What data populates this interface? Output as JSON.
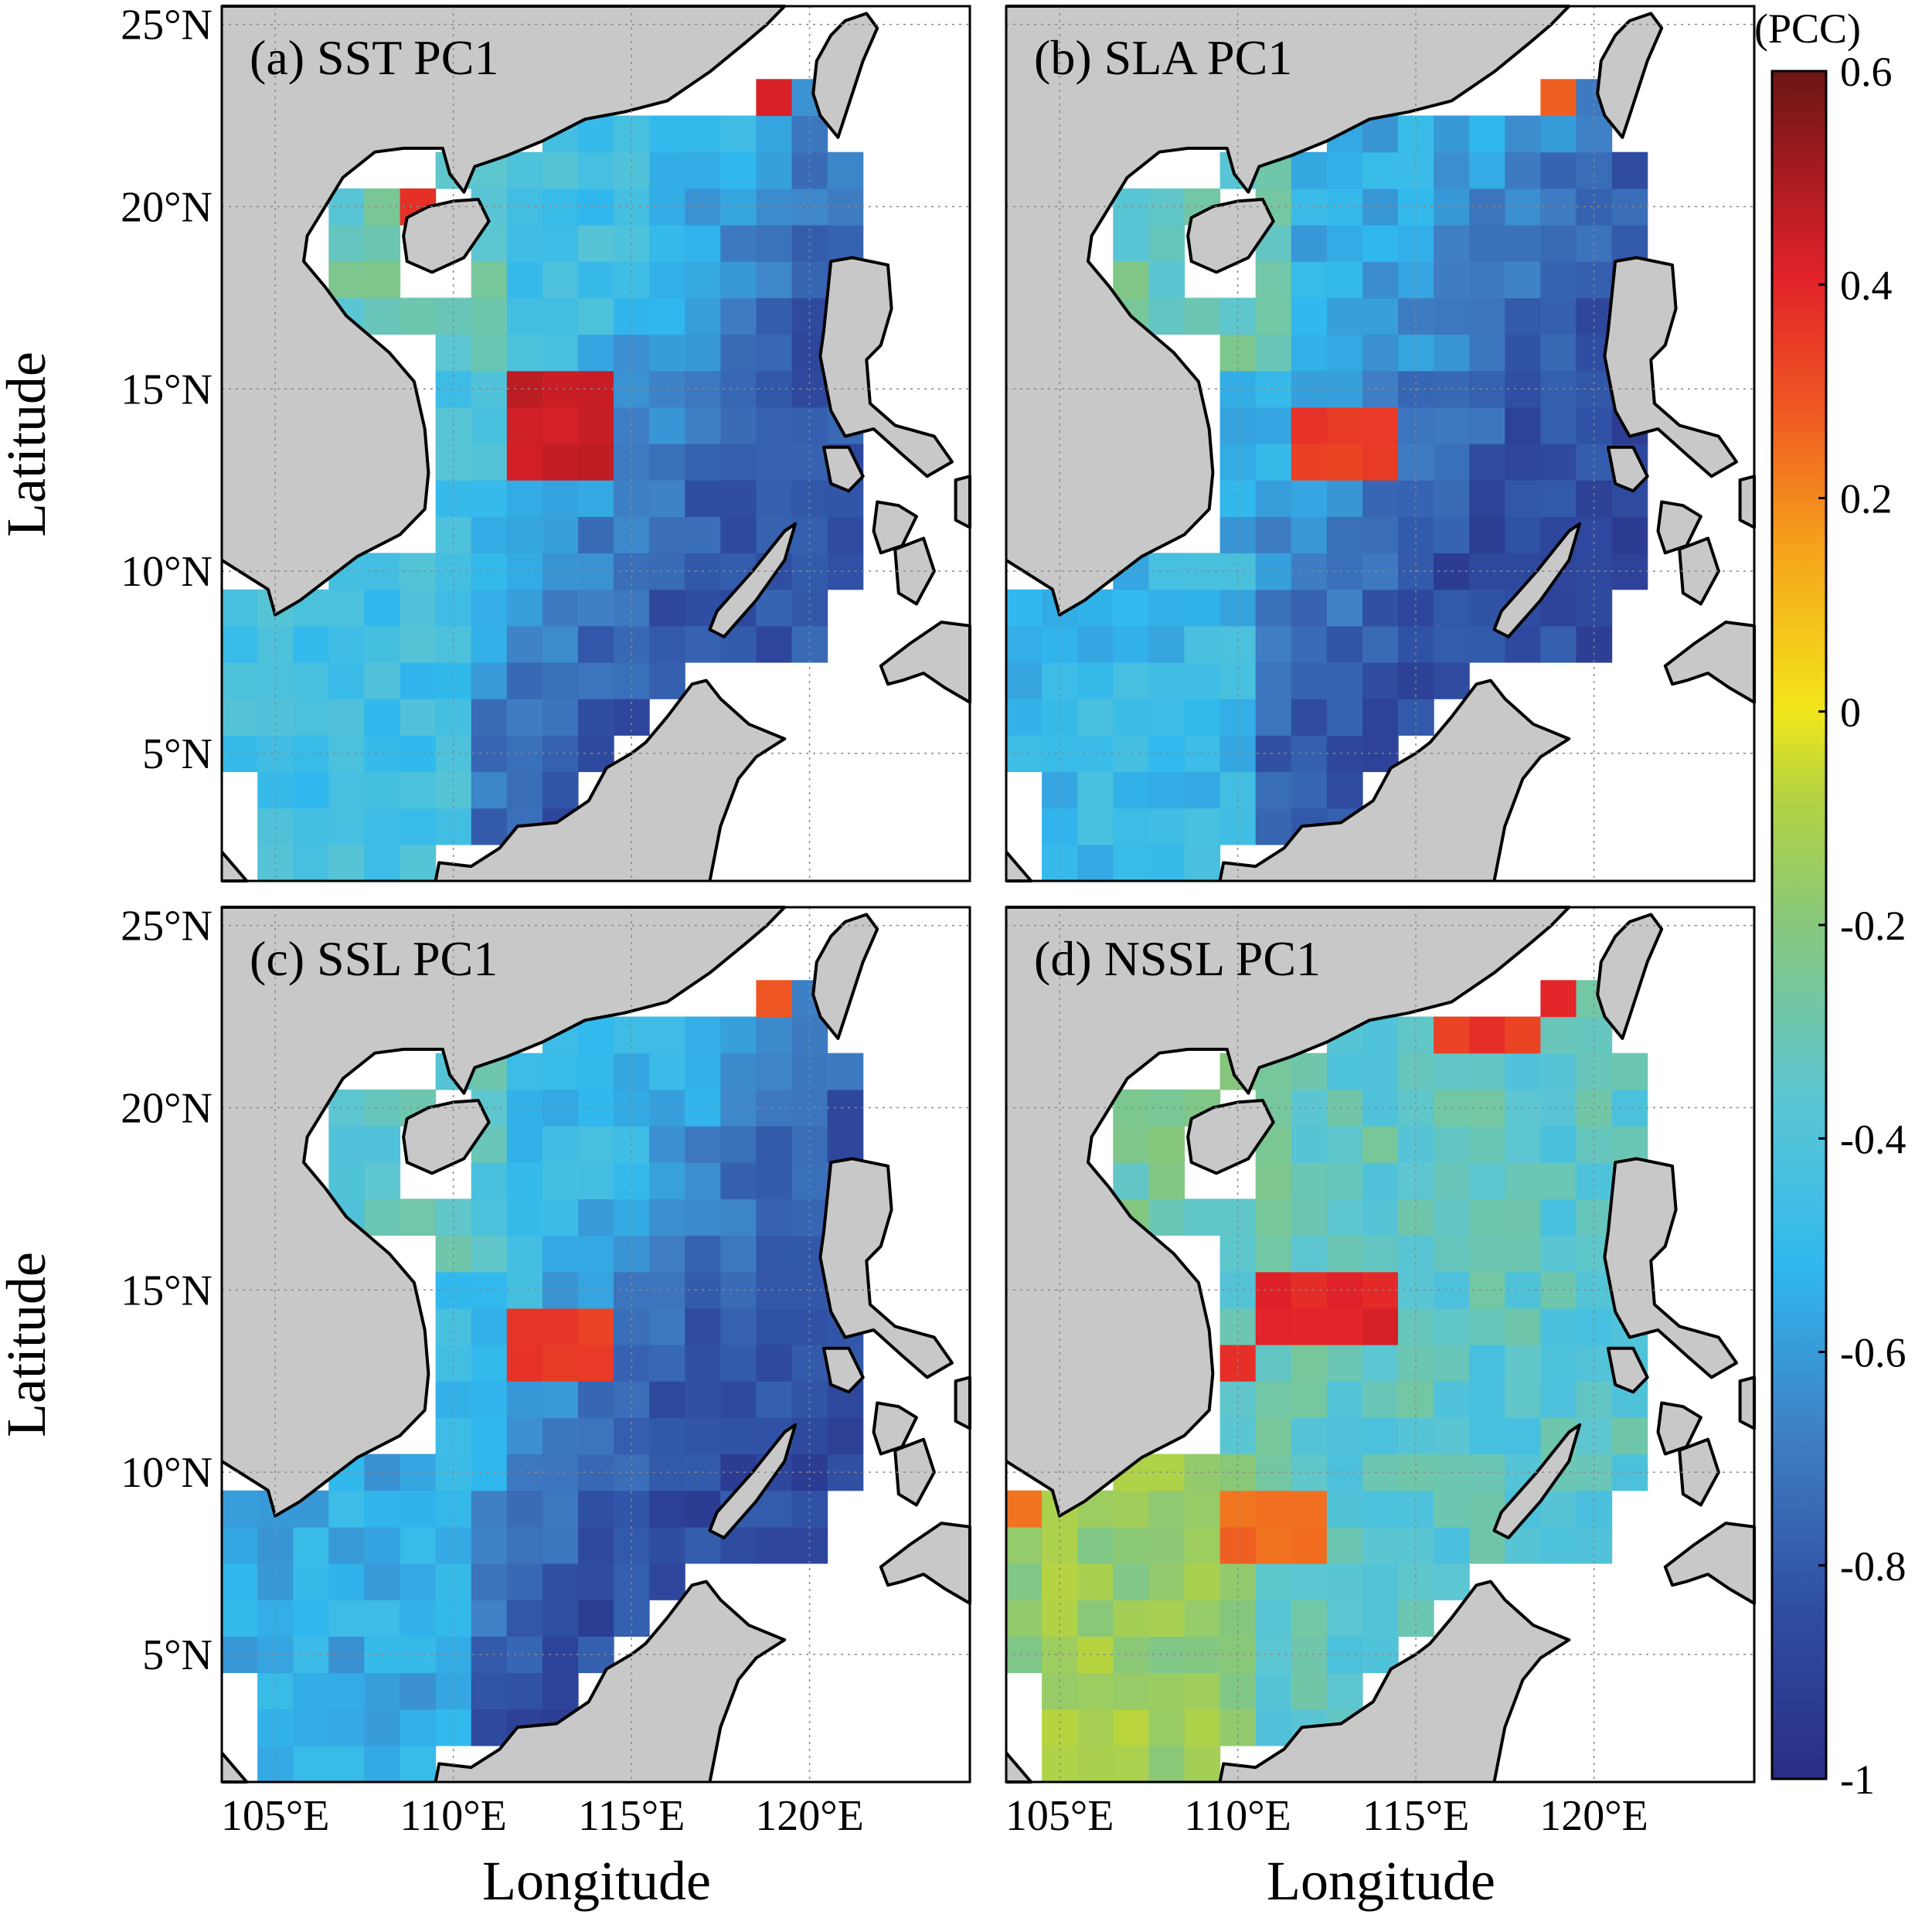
{
  "figure": {
    "ylabel": "Latitude",
    "xlabel": "Longitude",
    "lat_ticks": [
      "25°N",
      "20°N",
      "15°N",
      "10°N",
      "5°N"
    ],
    "lon_ticks": [
      "105°E",
      "110°E",
      "115°E",
      "120°E"
    ],
    "lon_range": [
      103.5,
      124.5
    ],
    "lat_range": [
      1.5,
      25.5
    ]
  },
  "panels": [
    {
      "id": "a",
      "label": "(a) SST PC1",
      "field": "SST PC1"
    },
    {
      "id": "b",
      "label": "(b) SLA PC1",
      "field": "SLA PC1"
    },
    {
      "id": "c",
      "label": "(c) SSL PC1",
      "field": "SSL PC1"
    },
    {
      "id": "d",
      "label": "(d) NSSL PC1",
      "field": "NSSL PC1"
    }
  ],
  "colorbar": {
    "title": "(PCC)",
    "min": -1,
    "max": 0.6,
    "tick_labels": [
      "0.6",
      "0.4",
      "0.2",
      "0",
      "-0.2",
      "-0.4",
      "-0.6",
      "-0.8",
      "-1"
    ],
    "tick_values": [
      0.6,
      0.4,
      0.2,
      0,
      -0.2,
      -0.4,
      -0.6,
      -0.8,
      -1
    ],
    "colormap": "jet"
  },
  "chart_data": {
    "type": "heatmap",
    "grid_resolution_deg": 1,
    "value_name": "PCC",
    "fields": [
      {
        "name": "SST PC1",
        "hotspots": [
          {
            "lon_range": [
              112,
              114
            ],
            "lat_range": [
              12.5,
              15.5
            ],
            "value": 0.45
          },
          {
            "lon": 109,
            "lat": 20,
            "value": 0.4
          },
          {
            "lon": 119,
            "lat": 23,
            "value": 0.45
          }
        ],
        "typical_values": {
          "northwest_shelf": -0.3,
          "central_basin": -0.45,
          "southeast_basin": -0.8,
          "southwest_shelf": -0.45
        }
      },
      {
        "name": "SLA PC1",
        "hotspots": [
          {
            "lon_range": [
              112,
              114
            ],
            "lat_range": [
              12.5,
              14.5
            ],
            "value": 0.35
          },
          {
            "lon": 119,
            "lat": 23,
            "value": 0.25
          }
        ],
        "typical_values": {
          "northwest_shelf": -0.3,
          "central_basin": -0.55,
          "southeast_basin": -0.85,
          "southwest_shelf": -0.5
        }
      },
      {
        "name": "SSL PC1",
        "hotspots": [
          {
            "lon_range": [
              112,
              114
            ],
            "lat_range": [
              12.5,
              14.5
            ],
            "value": 0.35
          },
          {
            "lon": 119,
            "lat": 23,
            "value": 0.3
          }
        ],
        "typical_values": {
          "northwest_shelf": -0.35,
          "central_basin": -0.5,
          "southeast_basin": -0.85,
          "southwest_shelf": -0.55
        }
      },
      {
        "name": "NSSL PC1",
        "hotspots": [
          {
            "lon_range": [
              111,
              114
            ],
            "lat_range": [
              13.5,
              15.5
            ],
            "value": 0.4
          },
          {
            "lon": 110,
            "lat": 13,
            "value": 0.4
          },
          {
            "lon_range": [
              110,
              112
            ],
            "lat_range": [
              7.5,
              9.5
            ],
            "value": 0.25
          },
          {
            "lon": 104,
            "lat": 9,
            "value": 0.25
          },
          {
            "lon_range": [
              116,
              118
            ],
            "lat_range": [
              21.5,
              22.5
            ],
            "value": 0.35
          },
          {
            "lon": 119,
            "lat": 23,
            "value": 0.4
          }
        ],
        "typical_values": {
          "northwest_shelf": -0.28,
          "central_basin": -0.33,
          "southeast_basin": -0.36,
          "southwest_shelf": -0.15
        }
      }
    ]
  }
}
